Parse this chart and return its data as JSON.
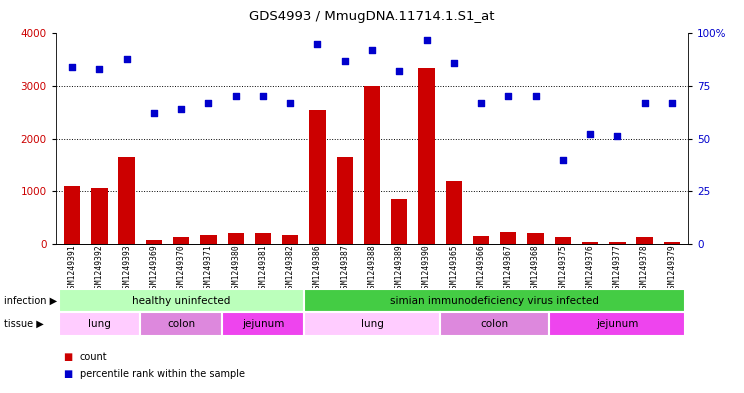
{
  "title": "GDS4993 / MmugDNA.11714.1.S1_at",
  "samples": [
    "GSM1249391",
    "GSM1249392",
    "GSM1249393",
    "GSM1249369",
    "GSM1249370",
    "GSM1249371",
    "GSM1249380",
    "GSM1249381",
    "GSM1249382",
    "GSM1249386",
    "GSM1249387",
    "GSM1249388",
    "GSM1249389",
    "GSM1249390",
    "GSM1249365",
    "GSM1249366",
    "GSM1249367",
    "GSM1249368",
    "GSM1249375",
    "GSM1249376",
    "GSM1249377",
    "GSM1249378",
    "GSM1249379"
  ],
  "counts": [
    1100,
    1050,
    1650,
    70,
    130,
    160,
    200,
    200,
    160,
    2550,
    1650,
    3000,
    850,
    3350,
    1200,
    150,
    220,
    200,
    120,
    40,
    30,
    120,
    30
  ],
  "percentiles": [
    84,
    83,
    88,
    62,
    64,
    67,
    70,
    70,
    67,
    95,
    87,
    92,
    82,
    97,
    86,
    67,
    70,
    70,
    40,
    52,
    51,
    67,
    67
  ],
  "bar_color": "#cc0000",
  "dot_color": "#0000cc",
  "infection_groups": [
    {
      "label": "healthy uninfected",
      "start": 0,
      "end": 8,
      "color": "#bbffbb"
    },
    {
      "label": "simian immunodeficiency virus infected",
      "start": 9,
      "end": 22,
      "color": "#44cc44"
    }
  ],
  "tissue_groups": [
    {
      "label": "lung",
      "start": 0,
      "end": 2,
      "color": "#ffccff"
    },
    {
      "label": "colon",
      "start": 3,
      "end": 5,
      "color": "#dd88dd"
    },
    {
      "label": "jejunum",
      "start": 6,
      "end": 8,
      "color": "#ee44ee"
    },
    {
      "label": "lung",
      "start": 9,
      "end": 13,
      "color": "#ffccff"
    },
    {
      "label": "colon",
      "start": 14,
      "end": 17,
      "color": "#dd88dd"
    },
    {
      "label": "jejunum",
      "start": 18,
      "end": 22,
      "color": "#ee44ee"
    }
  ],
  "ylim_left": [
    0,
    4000
  ],
  "ylim_right": [
    0,
    100
  ],
  "yticks_left": [
    0,
    1000,
    2000,
    3000,
    4000
  ],
  "yticks_right": [
    0,
    25,
    50,
    75,
    100
  ],
  "yticklabels_right": [
    "0",
    "25",
    "50",
    "75",
    "100%"
  ],
  "grid_values": [
    1000,
    2000,
    3000
  ],
  "infection_label": "infection",
  "tissue_label": "tissue",
  "legend_count_label": "count",
  "legend_pct_label": "percentile rank within the sample",
  "bg_color": "#f0f0f0"
}
